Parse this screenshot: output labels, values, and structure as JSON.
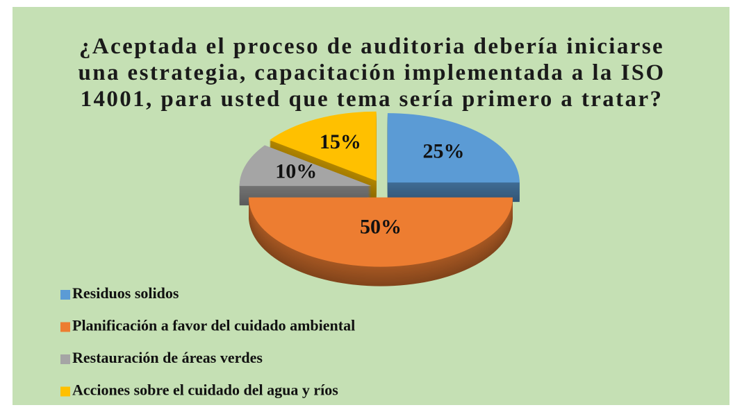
{
  "chart_data": {
    "type": "pie",
    "title": "¿Aceptada el proceso de auditoria debería iniciarse una estrategia, capacitación implementada a la ISO 14001, para usted que tema sería primero a tratar?",
    "categories": [
      "Residuos solidos",
      "Planificación a favor del cuidado ambiental",
      "Restauración de áreas verdes",
      "Acciones sobre el cuidado del agua y ríos"
    ],
    "values": [
      25,
      50,
      10,
      15
    ],
    "value_labels": [
      "25%",
      "50%",
      "10%",
      "15%"
    ],
    "colors": [
      "#5b9bd5",
      "#ed7d31",
      "#a5a5a5",
      "#ffc000"
    ],
    "legend": "bottom-left"
  }
}
